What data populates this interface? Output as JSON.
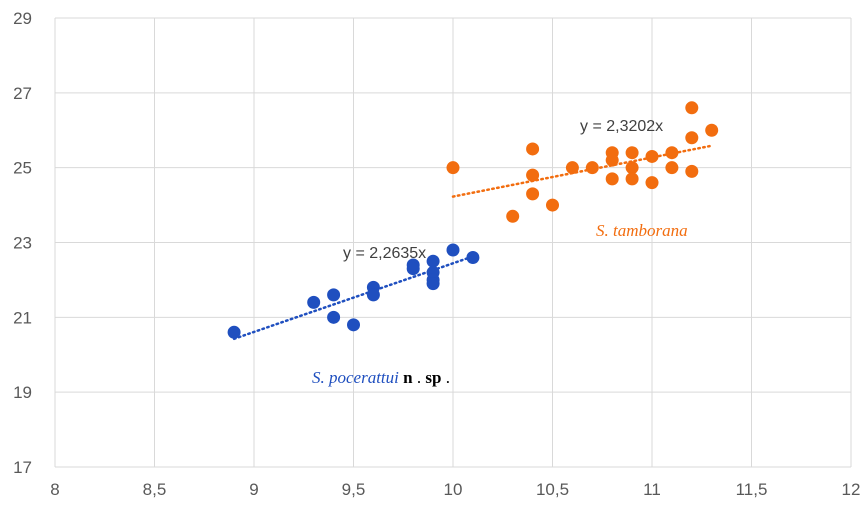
{
  "chart_data": {
    "type": "scatter",
    "xlim": [
      8,
      12
    ],
    "ylim": [
      17,
      29
    ],
    "x_ticks": [
      "8",
      "8,5",
      "9",
      "9,5",
      "10",
      "10,5",
      "11",
      "11,5",
      "12"
    ],
    "y_ticks": [
      "17",
      "19",
      "21",
      "23",
      "25",
      "27",
      "29"
    ],
    "grid": true,
    "series": [
      {
        "color": "#1f4fbf",
        "label_italic": "S. pocerattui",
        "label_n": "n",
        "label_dot1": ". ",
        "label_sp": "sp",
        "label_dot2": ".",
        "trendline_label": "y = 2,2635x",
        "trendline_range": [
          8.9,
          10.1
        ],
        "points": [
          [
            8.9,
            20.6
          ],
          [
            9.3,
            21.4
          ],
          [
            9.4,
            21.6
          ],
          [
            9.4,
            21.0
          ],
          [
            9.5,
            20.8
          ],
          [
            9.6,
            21.8
          ],
          [
            9.6,
            21.6
          ],
          [
            9.8,
            22.4
          ],
          [
            9.8,
            22.3
          ],
          [
            9.9,
            22.5
          ],
          [
            9.9,
            22.2
          ],
          [
            9.9,
            22.0
          ],
          [
            9.9,
            21.9
          ],
          [
            10.0,
            22.8
          ],
          [
            10.1,
            22.6
          ]
        ]
      },
      {
        "color": "#f26d0f",
        "label_italic": "S. tamborana",
        "trendline_label": "y = 2,3202x",
        "trendline_range": [
          10.0,
          11.3
        ],
        "points": [
          [
            10.0,
            25.0
          ],
          [
            10.3,
            23.7
          ],
          [
            10.4,
            25.5
          ],
          [
            10.4,
            24.8
          ],
          [
            10.4,
            24.3
          ],
          [
            10.5,
            24.0
          ],
          [
            10.6,
            25.0
          ],
          [
            10.7,
            25.0
          ],
          [
            10.8,
            25.4
          ],
          [
            10.8,
            25.2
          ],
          [
            10.8,
            24.7
          ],
          [
            10.9,
            25.4
          ],
          [
            10.9,
            25.0
          ],
          [
            10.9,
            24.7
          ],
          [
            11.0,
            25.3
          ],
          [
            11.0,
            24.6
          ],
          [
            11.1,
            25.4
          ],
          [
            11.1,
            25.0
          ],
          [
            11.2,
            26.6
          ],
          [
            11.2,
            25.8
          ],
          [
            11.2,
            24.9
          ],
          [
            11.3,
            26.0
          ]
        ]
      }
    ]
  }
}
